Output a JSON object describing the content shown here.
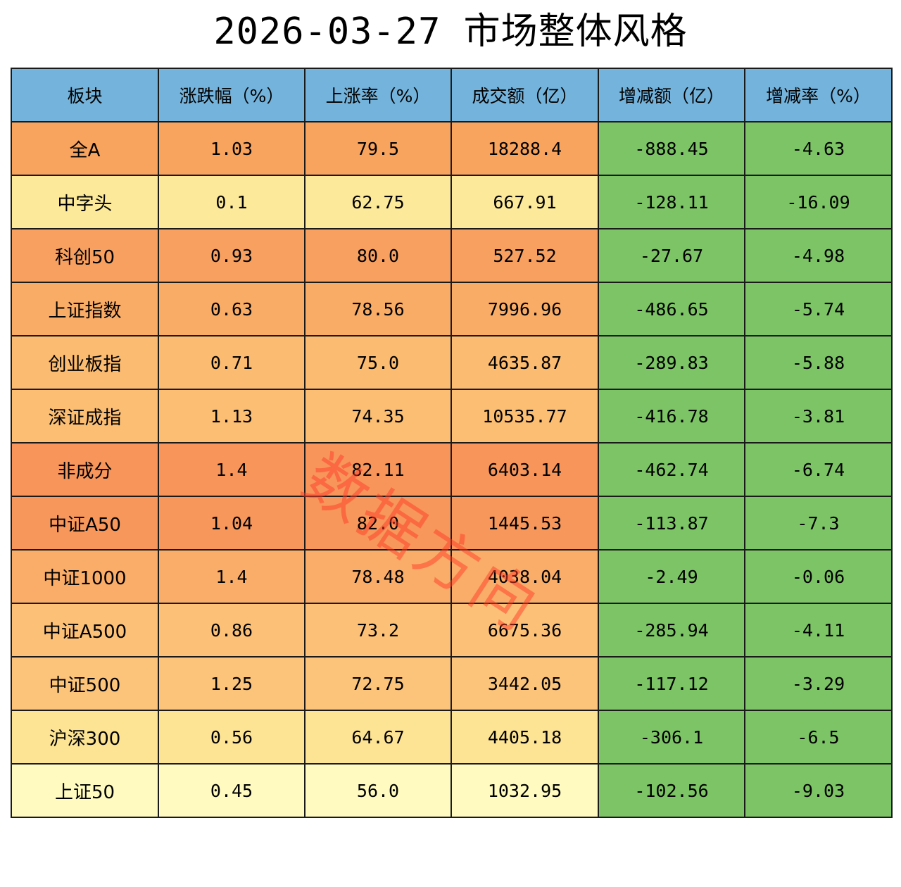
{
  "chart_data": {
    "type": "table",
    "title": "2026-03-27 市场整体风格",
    "columns": [
      "板块",
      "涨跌幅（%）",
      "上涨率（%）",
      "成交额（亿）",
      "增减额（亿）",
      "增减率（%）"
    ],
    "rows": [
      {
        "name": "全A",
        "change_pct": "1.03",
        "up_ratio": "79.5",
        "turnover": "18288.4",
        "delta_amount": "-888.45",
        "delta_rate": "-4.63",
        "bg": "#f8a45e"
      },
      {
        "name": "中字头",
        "change_pct": "0.1",
        "up_ratio": "62.75",
        "turnover": "667.91",
        "delta_amount": "-128.11",
        "delta_rate": "-16.09",
        "bg": "#fce99a"
      },
      {
        "name": "科创50",
        "change_pct": "0.93",
        "up_ratio": "80.0",
        "turnover": "527.52",
        "delta_amount": "-27.67",
        "delta_rate": "-4.98",
        "bg": "#f8a060"
      },
      {
        "name": "上证指数",
        "change_pct": "0.63",
        "up_ratio": "78.56",
        "turnover": "7996.96",
        "delta_amount": "-486.65",
        "delta_rate": "-5.74",
        "bg": "#f9ac66"
      },
      {
        "name": "创业板指",
        "change_pct": "0.71",
        "up_ratio": "75.0",
        "turnover": "4635.87",
        "delta_amount": "-289.83",
        "delta_rate": "-5.88",
        "bg": "#fbbb70"
      },
      {
        "name": "深证成指",
        "change_pct": "1.13",
        "up_ratio": "74.35",
        "turnover": "10535.77",
        "delta_amount": "-416.78",
        "delta_rate": "-3.81",
        "bg": "#fbbe73"
      },
      {
        "name": "非成分",
        "change_pct": "1.4",
        "up_ratio": "82.11",
        "turnover": "6403.14",
        "delta_amount": "-462.74",
        "delta_rate": "-6.74",
        "bg": "#f7955a"
      },
      {
        "name": "中证A50",
        "change_pct": "1.04",
        "up_ratio": "82.0",
        "turnover": "1445.53",
        "delta_amount": "-113.87",
        "delta_rate": "-7.3",
        "bg": "#f7975b"
      },
      {
        "name": "中证1000",
        "change_pct": "1.4",
        "up_ratio": "78.48",
        "turnover": "4038.04",
        "delta_amount": "-2.49",
        "delta_rate": "-0.06",
        "bg": "#f9ad68"
      },
      {
        "name": "中证A500",
        "change_pct": "0.86",
        "up_ratio": "73.2",
        "turnover": "6675.36",
        "delta_amount": "-285.94",
        "delta_rate": "-4.11",
        "bg": "#fcc177"
      },
      {
        "name": "中证500",
        "change_pct": "1.25",
        "up_ratio": "72.75",
        "turnover": "3442.05",
        "delta_amount": "-117.12",
        "delta_rate": "-3.29",
        "bg": "#fcc47a"
      },
      {
        "name": "沪深300",
        "change_pct": "0.56",
        "up_ratio": "64.67",
        "turnover": "4405.18",
        "delta_amount": "-306.1",
        "delta_rate": "-6.5",
        "bg": "#fde494"
      },
      {
        "name": "上证50",
        "change_pct": "0.45",
        "up_ratio": "56.0",
        "turnover": "1032.95",
        "delta_amount": "-102.56",
        "delta_rate": "-9.03",
        "bg": "#fffbc0"
      }
    ],
    "header_color": "#74b3dc",
    "negative_color": "#7cc465"
  },
  "watermark": "数据方向"
}
